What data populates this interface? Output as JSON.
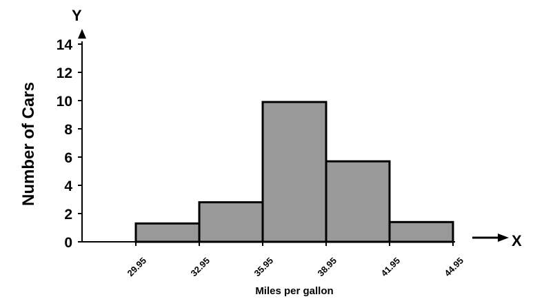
{
  "chart_data": {
    "type": "bar",
    "title": "",
    "xlabel": "Miles per gallon",
    "ylabel": "Number of Cars",
    "x_axis_letter": "X",
    "y_axis_letter": "Y",
    "bin_edges": [
      29.95,
      32.95,
      35.95,
      38.95,
      41.95,
      44.95
    ],
    "x_tick_labels": [
      "29.95",
      "32.95",
      "35.95",
      "38.95",
      "41.95",
      "44.95"
    ],
    "values": [
      1.3,
      2.8,
      9.9,
      5.7,
      1.4
    ],
    "yticks": [
      0,
      2,
      4,
      6,
      8,
      10,
      12,
      14
    ],
    "y_tick_labels": [
      "0",
      "2",
      "4",
      "6",
      "8",
      "10",
      "12",
      "14"
    ],
    "ylim": [
      0,
      14
    ],
    "bar_color": "#999999",
    "edge_color": "#000000",
    "grid": false,
    "legend": "none"
  }
}
